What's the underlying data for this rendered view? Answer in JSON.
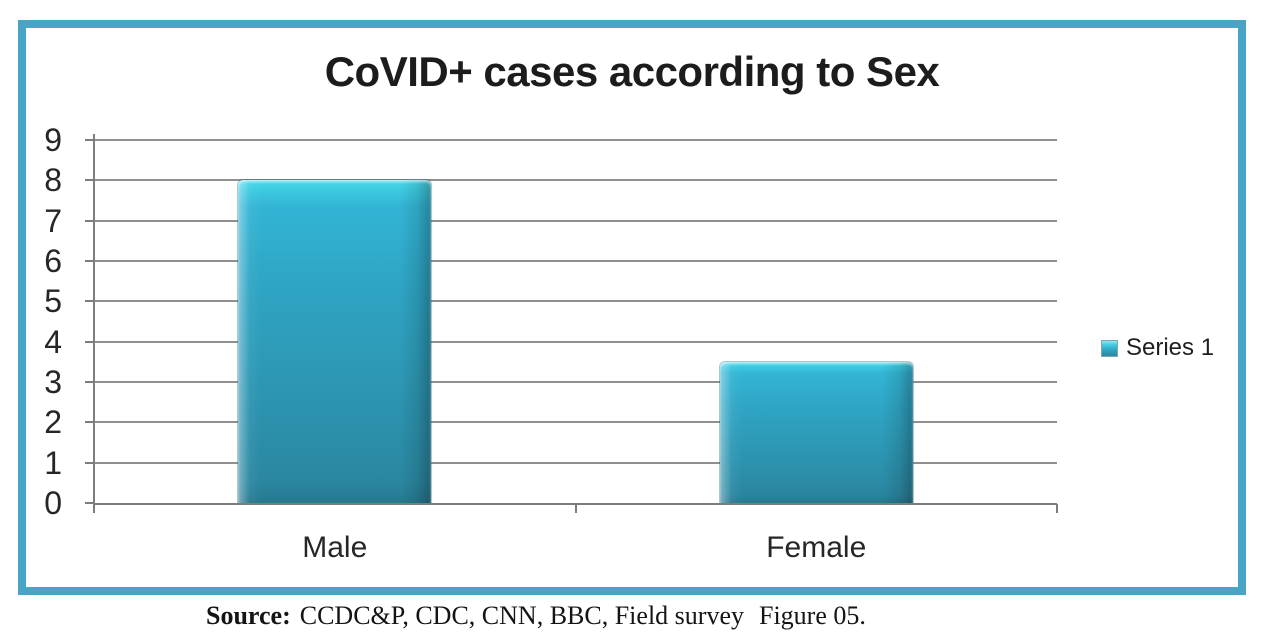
{
  "chart_data": {
    "type": "bar",
    "title": "CoVID+ cases according to Sex",
    "categories": [
      "Male",
      "Female"
    ],
    "series": [
      {
        "name": "Series 1",
        "values": [
          8,
          3.5
        ]
      }
    ],
    "xlabel": "",
    "ylabel": "",
    "ylim": [
      0,
      9
    ],
    "ytick_step": 1,
    "ytick_labels": [
      "0",
      "1",
      "2",
      "3",
      "4",
      "5",
      "6",
      "7",
      "8",
      "9"
    ],
    "grid": "horizontal-major",
    "legend_position": "right",
    "bar_color": "#2fa7c7",
    "frame_color": "#49a5c5",
    "grid_color": "#909090"
  },
  "legend": {
    "series_label": "Series 1"
  },
  "caption": {
    "source_label": "Source:",
    "sources": "CCDC&P, CDC, CNN, BBC, Field survey",
    "figure": "Figure 05."
  }
}
